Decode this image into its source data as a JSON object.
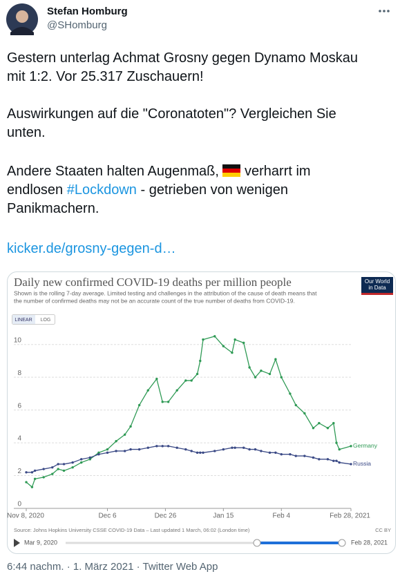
{
  "author": {
    "name": "Stefan Homburg",
    "handle": "@SHomburg"
  },
  "tweet": {
    "text_1": "Gestern unterlag Achmat Grosny gegen Dynamo Moskau mit 1:2. Vor 25.317 Zuschauern!",
    "text_2": "Auswirkungen auf die \"Coronatoten\"? Vergleichen Sie unten.",
    "text_3a": "Andere Staaten halten Augenmaß,",
    "text_3b": "verharrt im endlosen",
    "hashtag": "#Lockdown",
    "text_3c": " - getrieben von wenigen Panikmachern.",
    "link": "kicker.de/grosny-gegen-d…"
  },
  "chart_data": {
    "type": "line",
    "title": "Daily new confirmed COVID-19 deaths per million people",
    "subtitle": [
      "Shown is the rolling 7-day average. Limited testing and challenges in the attribution of the cause of death means that",
      "the number of confirmed deaths may not be an accurate count of the true number of deaths from COVID-19."
    ],
    "logo": [
      "Our World",
      "in Data"
    ],
    "buttons": [
      "LINEAR",
      "LOG"
    ],
    "x": [
      "2020-11-08",
      "2020-11-10",
      "2020-11-11",
      "2020-11-14",
      "2020-11-17",
      "2020-11-19",
      "2020-11-21",
      "2020-11-24",
      "2020-11-27",
      "2020-11-30",
      "2020-12-03",
      "2020-12-06",
      "2020-12-09",
      "2020-12-12",
      "2020-12-14",
      "2020-12-17",
      "2020-12-20",
      "2020-12-23",
      "2020-12-25",
      "2020-12-27",
      "2020-12-30",
      "2021-01-02",
      "2021-01-04",
      "2021-01-06",
      "2021-01-07",
      "2021-01-08",
      "2021-01-12",
      "2021-01-15",
      "2021-01-18",
      "2021-01-19",
      "2021-01-22",
      "2021-01-24",
      "2021-01-26",
      "2021-01-28",
      "2021-01-31",
      "2021-02-02",
      "2021-02-04",
      "2021-02-07",
      "2021-02-09",
      "2021-02-12",
      "2021-02-15",
      "2021-02-17",
      "2021-02-20",
      "2021-02-22",
      "2021-02-23",
      "2021-02-24",
      "2021-02-28"
    ],
    "series": [
      {
        "name": "Germany",
        "color": "#2f9a55",
        "values": [
          1.6,
          1.3,
          1.8,
          1.9,
          2.1,
          2.4,
          2.3,
          2.5,
          2.8,
          3.0,
          3.4,
          3.6,
          4.1,
          4.5,
          5.0,
          6.3,
          7.2,
          7.9,
          6.5,
          6.5,
          7.2,
          7.8,
          7.8,
          8.2,
          9.0,
          10.3,
          10.5,
          9.9,
          9.5,
          10.3,
          10.1,
          8.6,
          8.0,
          8.4,
          8.2,
          9.1,
          8.0,
          7.0,
          6.3,
          5.8,
          4.9,
          5.2,
          4.9,
          5.2,
          4.0,
          3.6,
          3.8
        ]
      },
      {
        "name": "Russia",
        "color": "#3b4a86",
        "values": [
          2.2,
          2.2,
          2.3,
          2.4,
          2.5,
          2.7,
          2.7,
          2.8,
          3.0,
          3.1,
          3.3,
          3.4,
          3.5,
          3.5,
          3.6,
          3.6,
          3.7,
          3.8,
          3.8,
          3.8,
          3.7,
          3.6,
          3.5,
          3.4,
          3.4,
          3.4,
          3.5,
          3.6,
          3.7,
          3.7,
          3.7,
          3.6,
          3.6,
          3.5,
          3.4,
          3.4,
          3.3,
          3.3,
          3.2,
          3.2,
          3.1,
          3.0,
          3.0,
          2.9,
          2.9,
          2.8,
          2.7
        ]
      }
    ],
    "xlim": [
      "2020-11-08",
      "2021-02-28"
    ],
    "xticks": [
      {
        "value": "2020-11-08",
        "label": "Nov 8, 2020"
      },
      {
        "value": "2020-12-06",
        "label": "Dec 6"
      },
      {
        "value": "2020-12-26",
        "label": "Dec 26"
      },
      {
        "value": "2021-01-15",
        "label": "Jan 15"
      },
      {
        "value": "2021-02-04",
        "label": "Feb 4"
      },
      {
        "value": "2021-02-28",
        "label": "Feb 28, 2021"
      }
    ],
    "ylim": [
      0,
      11
    ],
    "yticks": [
      0,
      2,
      4,
      6,
      8,
      10
    ],
    "grid": true,
    "source": "Source: Johns Hopkins University CSSE COVID-19 Data – Last updated 1 March, 06:02 (London time)",
    "license": "CC BY",
    "slider_start": "Mar 9, 2020",
    "slider_end": "Feb 28, 2021"
  },
  "footer": "6:44 nachm. · 1. März 2021 · Twitter Web App"
}
